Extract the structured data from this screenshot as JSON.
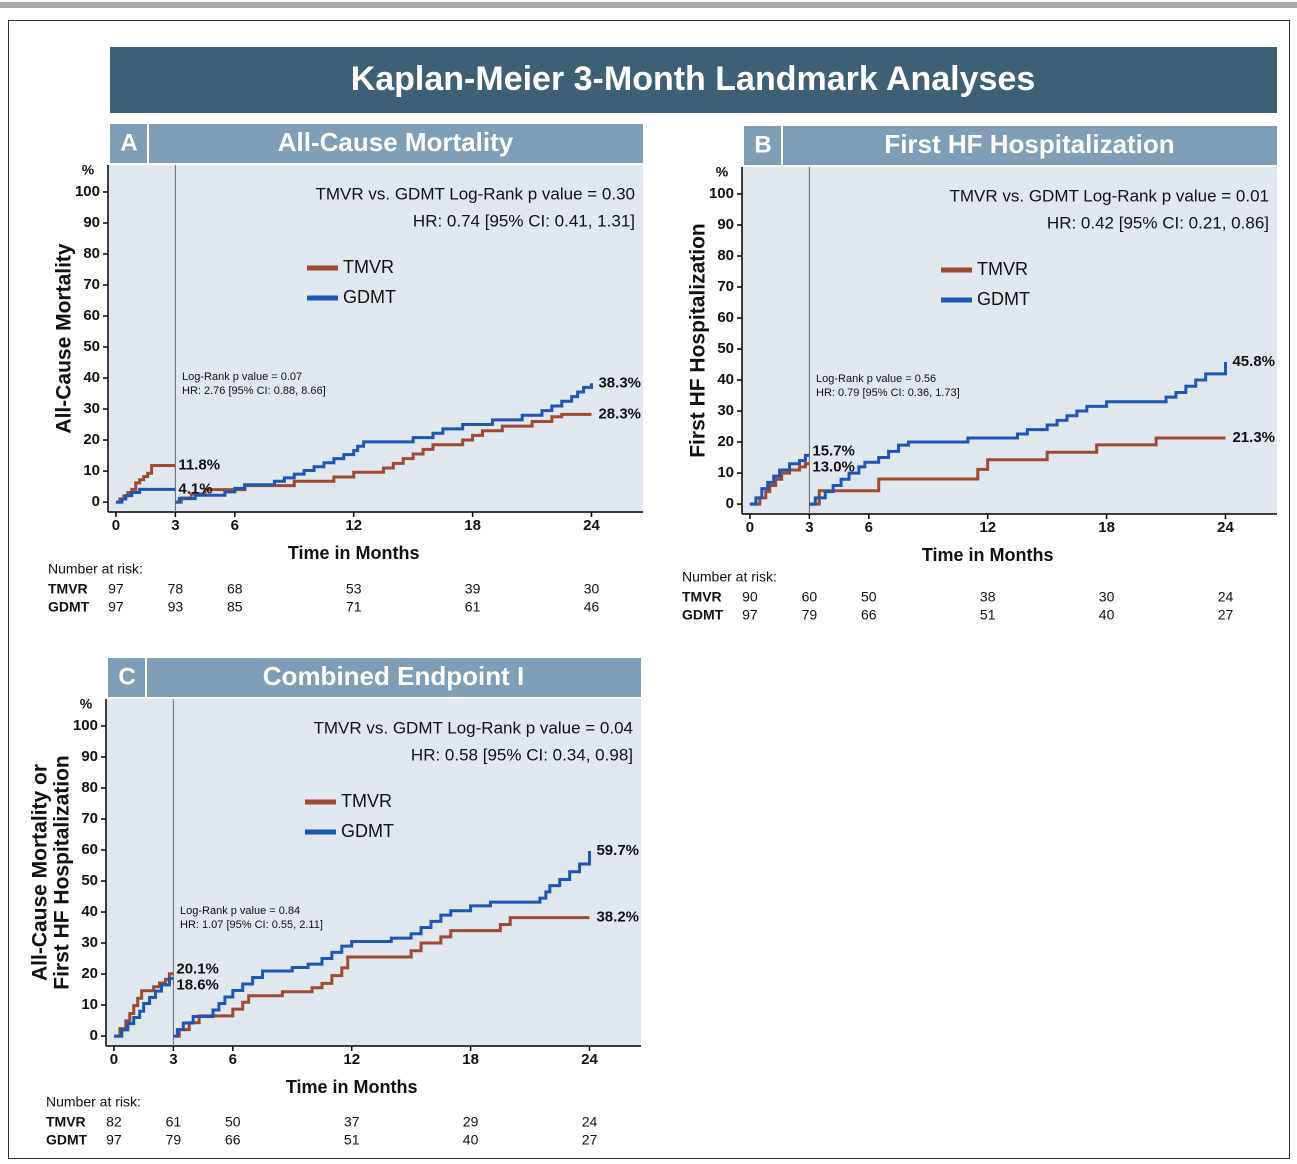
{
  "title": "Kaplan-Meier 3-Month Landmark Analyses",
  "chart_data": [
    {
      "type": "line",
      "panel": "A",
      "title": "All-Cause Mortality",
      "y_label": [
        "All-Cause Mortality"
      ],
      "y_unit": "%",
      "x_label": "Time in Months",
      "xlim": [
        -0.4,
        26.6
      ],
      "ylim": [
        -3.2,
        108.7
      ],
      "xticks": [
        0,
        3,
        6,
        12,
        18,
        24
      ],
      "yticks": [
        0,
        10,
        20,
        30,
        40,
        50,
        60,
        70,
        80,
        90,
        100
      ],
      "landmark_month": 3,
      "annotations": [
        "TMVR vs. GDMT Log-Rank p value = 0.30",
        "HR: 0.74 [95% CI: 0.41, 1.31]"
      ],
      "inset_annotations": [
        "Log-Rank p value = 0.07",
        "HR: 2.76 [95% CI: 0.88, 8.66]"
      ],
      "series": [
        {
          "name": "TMVR",
          "color": "#9c4a33",
          "x": [
            0,
            0.2,
            0.4,
            0.6,
            0.8,
            1.0,
            1.2,
            1.4,
            1.6,
            1.8,
            3,
            3,
            3,
            3.3,
            3.8,
            4.5,
            6.5,
            9,
            11,
            12,
            13.5,
            14,
            14.5,
            15,
            15.5,
            16,
            17.5,
            18,
            18.5,
            19.5,
            21,
            22,
            22.5,
            24
          ],
          "values": [
            0,
            1,
            2,
            3.1,
            4.1,
            6.2,
            7.2,
            8.2,
            9.3,
            11.8,
            11.8,
            null,
            0,
            1.3,
            2.6,
            4,
            5.3,
            6.7,
            8.1,
            9.6,
            11,
            12.5,
            14,
            15.5,
            17,
            18.5,
            20,
            21.5,
            23,
            24.5,
            26,
            27.5,
            28.3,
            28.3
          ]
        },
        {
          "name": "GDMT",
          "color": "#1f55b5",
          "x": [
            0,
            0.3,
            0.5,
            0.8,
            1.2,
            3,
            3,
            3,
            3.2,
            4,
            5.5,
            6,
            6.5,
            8,
            8.5,
            9,
            9.5,
            10,
            10.5,
            11,
            11.5,
            12,
            12.2,
            12.5,
            15,
            16,
            16.5,
            17.5,
            19,
            20.5,
            21.5,
            22,
            22.5,
            23,
            23.3,
            23.6,
            24
          ],
          "values": [
            0,
            1,
            2.1,
            3.1,
            4.1,
            4.1,
            null,
            0,
            1.1,
            2.2,
            3.3,
            4.4,
            5.6,
            6.7,
            7.8,
            9,
            10.2,
            11.4,
            12.7,
            14,
            15.3,
            16.6,
            18,
            19.4,
            20.8,
            22.2,
            23.6,
            25,
            26.5,
            28,
            29.5,
            31,
            32.5,
            34,
            35.5,
            37,
            38.3
          ]
        }
      ],
      "landmark_labels": [
        {
          "value": 11.8,
          "label": "11.8%"
        },
        {
          "value": 4.1,
          "label": "4.1%"
        }
      ],
      "final_labels": [
        {
          "value": 28.3,
          "label": "28.3%"
        },
        {
          "value": 38.3,
          "label": "38.3%"
        }
      ],
      "risk_table": {
        "title": "Number at risk:",
        "rows": [
          {
            "name": "TMVR",
            "counts": [
              "97",
              "78",
              "68",
              "53",
              "39",
              "30"
            ]
          },
          {
            "name": "GDMT",
            "counts": [
              "97",
              "93",
              "85",
              "71",
              "61",
              "46"
            ]
          }
        ]
      }
    },
    {
      "type": "line",
      "panel": "B",
      "title": "First HF Hospitalization",
      "y_label": [
        "First HF Hospitalization"
      ],
      "y_unit": "%",
      "x_label": "Time in Months",
      "xlim": [
        -0.4,
        26.6
      ],
      "ylim": [
        -3.2,
        108.7
      ],
      "xticks": [
        0,
        3,
        6,
        12,
        18,
        24
      ],
      "yticks": [
        0,
        10,
        20,
        30,
        40,
        50,
        60,
        70,
        80,
        90,
        100
      ],
      "landmark_month": 3,
      "annotations": [
        "TMVR vs. GDMT Log-Rank p value = 0.01",
        "HR: 0.42 [95% CI: 0.21, 0.86]"
      ],
      "inset_annotations": [
        "Log-Rank p value = 0.56",
        "HR: 0.79 [95% CI: 0.36, 1.73]"
      ],
      "series": [
        {
          "name": "TMVR",
          "color": "#9c4a33",
          "x": [
            0,
            0.5,
            0.8,
            1.0,
            1.3,
            1.6,
            2.0,
            2.5,
            2.8,
            3,
            3,
            3,
            3.5,
            6,
            6.5,
            11,
            11.5,
            12,
            15,
            17.5,
            20.5,
            24
          ],
          "values": [
            0,
            2,
            4,
            6,
            8,
            10,
            11,
            12,
            13,
            13,
            null,
            0,
            4.3,
            4.3,
            8.1,
            8.1,
            11.2,
            14.3,
            16.7,
            19.1,
            21.3,
            21.3
          ]
        },
        {
          "name": "GDMT",
          "color": "#1f55b5",
          "x": [
            0,
            0.3,
            0.6,
            0.9,
            1.2,
            1.5,
            2.0,
            2.5,
            2.8,
            3,
            3,
            3,
            3.3,
            3.8,
            4.2,
            4.6,
            5,
            5.5,
            5.8,
            6.5,
            7,
            7.5,
            8,
            11,
            13.5,
            14,
            15,
            15.5,
            16,
            16.5,
            17,
            18,
            21,
            21.5,
            22,
            22.5,
            23,
            24
          ],
          "values": [
            0,
            2,
            5,
            7,
            9,
            11,
            13,
            14,
            15.7,
            15.7,
            null,
            0,
            2,
            4,
            6,
            8,
            10,
            12,
            13.5,
            15,
            17,
            19,
            20,
            21.3,
            22.6,
            24,
            25.5,
            27,
            28.5,
            30,
            31.5,
            33,
            34.5,
            36,
            38,
            40,
            42,
            45.8
          ]
        }
      ],
      "landmark_labels": [
        {
          "value": 13.0,
          "label": "13.0%"
        },
        {
          "value": 15.7,
          "label": "15.7%"
        }
      ],
      "final_labels": [
        {
          "value": 21.3,
          "label": "21.3%"
        },
        {
          "value": 45.8,
          "label": "45.8%"
        }
      ],
      "risk_table": {
        "title": "Number at risk:",
        "rows": [
          {
            "name": "TMVR",
            "counts": [
              "90",
              "60",
              "50",
              "38",
              "30",
              "24"
            ]
          },
          {
            "name": "GDMT",
            "counts": [
              "97",
              "79",
              "66",
              "51",
              "40",
              "27"
            ]
          }
        ]
      }
    },
    {
      "type": "line",
      "panel": "C",
      "title": "Combined Endpoint I",
      "y_label": [
        "All-Cause Mortality or",
        "First HF Hospitalization"
      ],
      "y_unit": "%",
      "x_label": "Time in Months",
      "xlim": [
        -0.4,
        26.6
      ],
      "ylim": [
        -3.2,
        108.7
      ],
      "xticks": [
        0,
        3,
        6,
        12,
        18,
        24
      ],
      "yticks": [
        0,
        10,
        20,
        30,
        40,
        50,
        60,
        70,
        80,
        90,
        100
      ],
      "landmark_month": 3,
      "annotations": [
        "TMVR vs. GDMT Log-Rank p value = 0.04",
        "HR: 0.58 [95% CI: 0.34, 0.98]"
      ],
      "inset_annotations": [
        "Log-Rank p value = 0.84",
        "HR: 1.07 [95% CI: 0.55, 2.11]"
      ],
      "series": [
        {
          "name": "TMVR",
          "color": "#9c4a33",
          "x": [
            0,
            0.3,
            0.6,
            0.8,
            1.0,
            1.2,
            1.4,
            2.0,
            2.3,
            2.6,
            2.8,
            3,
            3,
            3,
            3.3,
            3.8,
            4.3,
            6,
            6.5,
            6.8,
            8.5,
            10,
            10.5,
            11,
            11.5,
            11.8,
            15,
            15.5,
            16.5,
            17,
            19.5,
            20,
            24
          ],
          "values": [
            0,
            2.4,
            4.9,
            7.3,
            9.8,
            12.2,
            14.6,
            15.9,
            17.1,
            18.3,
            20.1,
            20.1,
            null,
            0,
            2.1,
            4.3,
            6.5,
            8.7,
            10.9,
            13,
            14.3,
            15.6,
            17,
            19.5,
            22,
            25.5,
            27.5,
            30,
            32,
            34,
            36,
            38.2,
            38.2
          ]
        },
        {
          "name": "GDMT",
          "color": "#1f55b5",
          "x": [
            0,
            0.4,
            0.7,
            1.0,
            1.3,
            1.5,
            1.8,
            2.1,
            2.4,
            2.8,
            3,
            3,
            3,
            3.2,
            3.5,
            4,
            5,
            5.3,
            5.6,
            6,
            6.5,
            7,
            7.5,
            9,
            9.8,
            10.5,
            11,
            11.5,
            12,
            14,
            15,
            15.5,
            16,
            16.5,
            17,
            18,
            19,
            21.5,
            21.8,
            22,
            22.5,
            23,
            23.5,
            24
          ],
          "values": [
            0,
            2,
            4,
            6,
            8,
            10.5,
            12.5,
            14.5,
            16.5,
            18.6,
            18.6,
            null,
            0,
            2.1,
            4.2,
            6.3,
            8.4,
            10.5,
            12.6,
            14.7,
            16.8,
            18.9,
            21,
            22.1,
            23.2,
            25,
            27,
            29,
            30.5,
            31.6,
            33,
            35,
            37,
            39,
            40.4,
            42,
            43.2,
            44.5,
            46.5,
            48.5,
            50.5,
            53,
            55.5,
            59.7
          ]
        }
      ],
      "landmark_labels": [
        {
          "value": 20.1,
          "label": "20.1%"
        },
        {
          "value": 18.6,
          "label": "18.6%"
        }
      ],
      "final_labels": [
        {
          "value": 38.2,
          "label": "38.2%"
        },
        {
          "value": 59.7,
          "label": "59.7%"
        }
      ],
      "risk_table": {
        "title": "Number at risk:",
        "rows": [
          {
            "name": "TMVR",
            "counts": [
              "82",
              "61",
              "50",
              "37",
              "29",
              "24"
            ]
          },
          {
            "name": "GDMT",
            "counts": [
              "97",
              "79",
              "66",
              "51",
              "40",
              "27"
            ]
          }
        ]
      }
    }
  ]
}
